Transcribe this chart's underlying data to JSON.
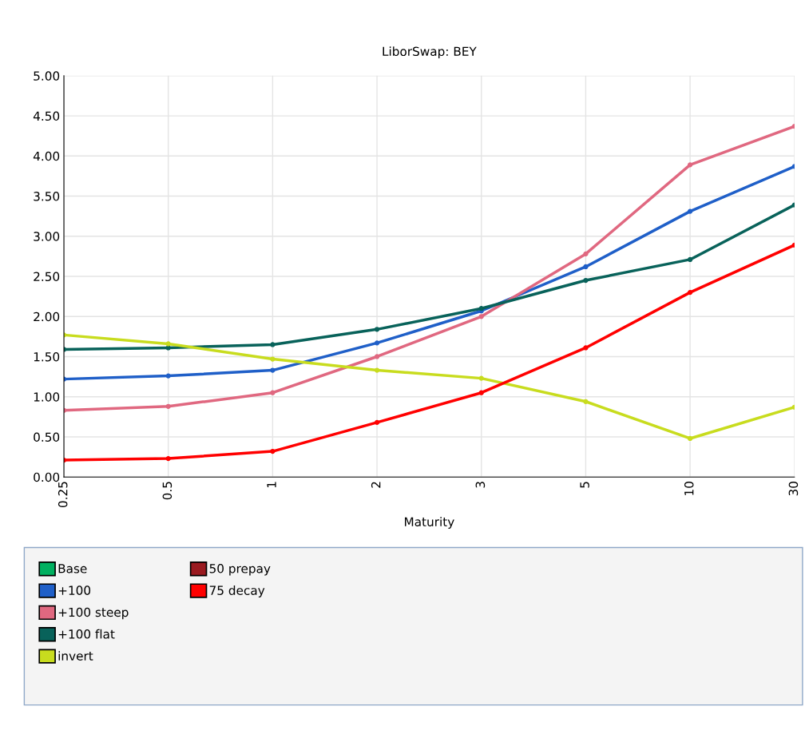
{
  "chart_data": {
    "type": "line",
    "title": "LiborSwap: BEY",
    "xlabel": "Maturity",
    "categories": [
      "0.25",
      "0.5",
      "1",
      "2",
      "3",
      "5",
      "10",
      "30"
    ],
    "ylim": [
      0,
      5
    ],
    "yticks": [
      {
        "value": 0,
        "label": "0.00"
      },
      {
        "value": 0.5,
        "label": "0.50"
      },
      {
        "value": 1,
        "label": "1.00"
      },
      {
        "value": 1.5,
        "label": "1.50"
      },
      {
        "value": 2,
        "label": "2.00"
      },
      {
        "value": 2.5,
        "label": "2.50"
      },
      {
        "value": 3,
        "label": "3.00"
      },
      {
        "value": 3.5,
        "label": "3.50"
      },
      {
        "value": 4,
        "label": "4.00"
      },
      {
        "value": 4.5,
        "label": "4.50"
      },
      {
        "value": 5,
        "label": "5.00"
      }
    ],
    "grid": true,
    "legend": "bottom",
    "marker": "circle",
    "line_style": "solid",
    "series": [
      {
        "name": "Base",
        "color": "#00b060",
        "values": [
          null,
          null,
          null,
          null,
          null,
          null,
          null,
          null
        ]
      },
      {
        "name": "+100",
        "color": "#1f5fc8",
        "values": [
          1.22,
          1.26,
          1.33,
          1.67,
          2.07,
          2.62,
          3.31,
          3.87
        ]
      },
      {
        "name": "+100 steep",
        "color": "#e06880",
        "values": [
          0.83,
          0.88,
          1.05,
          1.5,
          2.0,
          2.78,
          3.89,
          4.37
        ]
      },
      {
        "name": "+100 flat",
        "color": "#08625a",
        "values": [
          1.59,
          1.61,
          1.65,
          1.84,
          2.1,
          2.45,
          2.71,
          3.39
        ]
      },
      {
        "name": "invert",
        "color": "#c8dc1e",
        "values": [
          1.77,
          1.66,
          1.47,
          1.33,
          1.23,
          0.94,
          0.48,
          0.87
        ]
      },
      {
        "name": "50 prepay",
        "color": "#9a1a20",
        "values": [
          null,
          null,
          null,
          null,
          null,
          null,
          null,
          null
        ]
      },
      {
        "name": "75 decay",
        "color": "#ff0000",
        "values": [
          0.21,
          0.23,
          0.32,
          0.68,
          1.05,
          1.61,
          2.3,
          2.89
        ]
      }
    ]
  }
}
